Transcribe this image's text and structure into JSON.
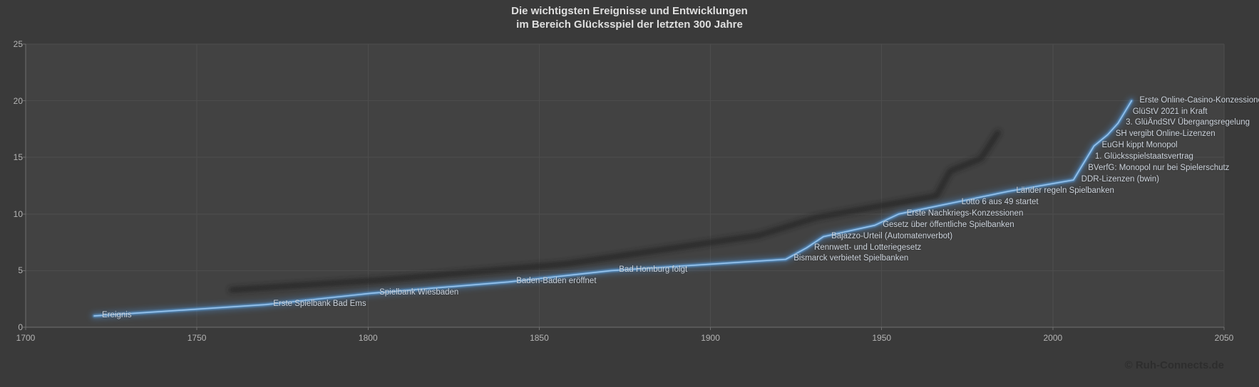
{
  "chart": {
    "title_line1": "Die wichtigsten Ereignisse und Entwicklungen",
    "title_line2": "im Bereich Glücksspiel der letzten 300 Jahre",
    "copyright": "© Ruh-Connects.de"
  },
  "chart_data": {
    "type": "line",
    "title": "Die wichtigsten Ereignisse und Entwicklungen im Bereich Glücksspiel der letzten 300 Jahre",
    "series_name": "Ereignis",
    "legend_position": "none",
    "grid": true,
    "x_axis": {
      "min": 1700,
      "max": 2050,
      "tick_interval": 50,
      "ticks": [
        1700,
        1750,
        1800,
        1850,
        1900,
        1950,
        2000,
        2050
      ]
    },
    "y_axis": {
      "min": 0,
      "max": 25,
      "tick_interval": 5,
      "ticks": [
        0,
        5,
        10,
        15,
        20,
        25
      ]
    },
    "events": [
      {
        "year": 1720,
        "value": 1,
        "label": "Ereignis"
      },
      {
        "year": 1770,
        "value": 2,
        "label": "Erste Spielbank Bad Ems"
      },
      {
        "year": 1801,
        "value": 3,
        "label": "Spielbank Wiesbaden"
      },
      {
        "year": 1841,
        "value": 4,
        "label": "Baden-Baden eröffnet"
      },
      {
        "year": 1871,
        "value": 5,
        "label": "Bad Homburg folgt"
      },
      {
        "year": 1922,
        "value": 6,
        "label": "Bismarck verbietet Spielbanken"
      },
      {
        "year": 1928,
        "value": 7,
        "label": "Rennwett- und Lotteriegesetz"
      },
      {
        "year": 1933,
        "value": 8,
        "label": "Bajazzo-Urteil (Automatenverbot)"
      },
      {
        "year": 1948,
        "value": 9,
        "label": "Gesetz über öffentliche Spielbanken"
      },
      {
        "year": 1955,
        "value": 10,
        "label": "Erste Nachkriegs-Konzessionen"
      },
      {
        "year": 1971,
        "value": 11,
        "label": "Lotto 6 aus 49 startet"
      },
      {
        "year": 1987,
        "value": 12,
        "label": "Länder regeln Spielbanken"
      },
      {
        "year": 2006,
        "value": 13,
        "label": "DDR-Lizenzen (bwin)"
      },
      {
        "year": 2008,
        "value": 14,
        "label": "BVerfG: Monopol nur bei Spielerschutz"
      },
      {
        "year": 2010,
        "value": 15,
        "label": "1. Glücksspielstaatsvertrag"
      },
      {
        "year": 2012,
        "value": 16,
        "label": "EuGH kippt Monopol"
      },
      {
        "year": 2016,
        "value": 17,
        "label": "SH vergibt Online-Lizenzen"
      },
      {
        "year": 2019,
        "value": 18,
        "label": "3. GlüÄndStV Übergangsregelung"
      },
      {
        "year": 2021,
        "value": 19,
        "label": "GlüStV 2021 in Kraft"
      },
      {
        "year": 2023,
        "value": 20,
        "label": "Erste Online-Casino-Konzessionen"
      }
    ],
    "shadow_series": {
      "name": "",
      "style": "blurred dark offset line (decorative shadow), no labels",
      "points": [
        [
          1760,
          3.3
        ],
        [
          1805,
          4.2
        ],
        [
          1858,
          5.6
        ],
        [
          1914,
          8.1
        ],
        [
          1931,
          9.7
        ],
        [
          1966,
          11.6
        ],
        [
          1970,
          13.8
        ],
        [
          1975,
          14.4
        ],
        [
          1979,
          14.9
        ],
        [
          1984,
          17.2
        ]
      ]
    },
    "colors": {
      "line": "#5b9bd5",
      "line_core": "#9cc7ef",
      "glow": "#4f8fd0",
      "shadow": "#232323",
      "background": "#3a3a3a",
      "plot_background": "#424242",
      "gridline": "#4d4d4d",
      "axis": "#707070",
      "title_text": "#dfdfdf",
      "tick_text": "#b4b4b4",
      "label_text": "#ccd3dc",
      "copyright_text": "#2d2d2d"
    }
  }
}
